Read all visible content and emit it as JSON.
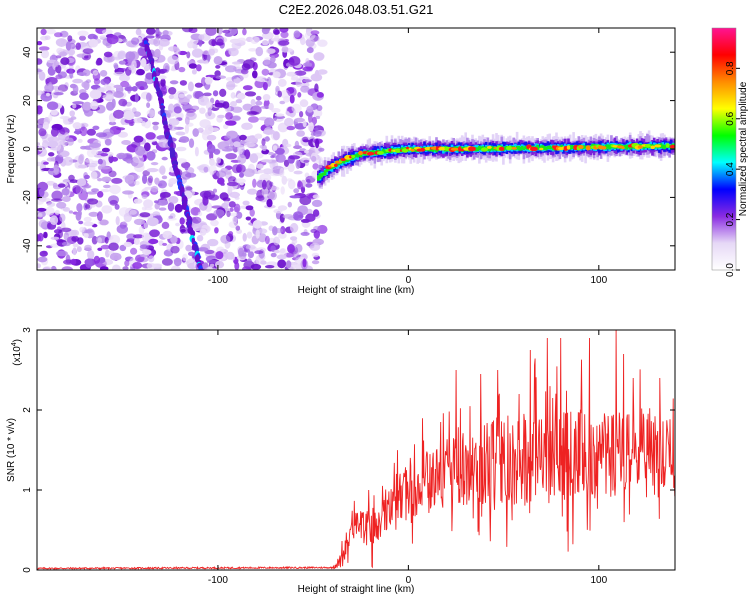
{
  "title": "C2E2.2026.048.03.51.G21",
  "chart_data": [
    {
      "type": "heatmap",
      "name": "spectrogram",
      "xlabel": "Height of straight line (km)",
      "ylabel": "Frequency (Hz)",
      "xlim": [
        -195,
        140
      ],
      "ylim": [
        -50,
        50
      ],
      "xticks": [
        -100,
        0,
        100
      ],
      "yticks": [
        -40,
        -20,
        0,
        20,
        40
      ],
      "noise_region_x": [
        -195,
        -48
      ],
      "oblique_trace": [
        {
          "x": -138,
          "y": 45
        },
        {
          "x": -130,
          "y": 20
        },
        {
          "x": -123,
          "y": -5
        },
        {
          "x": -115,
          "y": -30
        },
        {
          "x": -109,
          "y": -50
        }
      ],
      "main_trace": [
        {
          "x": -48,
          "y": -12
        },
        {
          "x": -42,
          "y": -8
        },
        {
          "x": -35,
          "y": -5
        },
        {
          "x": -25,
          "y": -2
        },
        {
          "x": -10,
          "y": -0.8
        },
        {
          "x": 0,
          "y": 0
        },
        {
          "x": 20,
          "y": 0
        },
        {
          "x": 50,
          "y": 0.3
        },
        {
          "x": 80,
          "y": 0.5
        },
        {
          "x": 110,
          "y": 1
        },
        {
          "x": 140,
          "y": 1.2
        }
      ],
      "colorbar": {
        "label": "Normalized spectral amplitude",
        "range": [
          0,
          0.96
        ],
        "ticks": [
          "0.0",
          "0.2",
          "0.4",
          "0.6",
          "0.8"
        ],
        "tick_values": [
          0,
          0.2,
          0.4,
          0.6,
          0.8
        ],
        "colors": [
          "#ffffff",
          "#e6d8f6",
          "#8a2be2",
          "#0000ff",
          "#00ffff",
          "#00ff00",
          "#ffff00",
          "#ff8c00",
          "#ff0000",
          "#ff1493"
        ]
      }
    },
    {
      "type": "line",
      "name": "snr",
      "xlabel": "Height of straight line (km)",
      "ylabel": "SNR (10 * v/v)",
      "y_multiplier_base": "(x10",
      "y_multiplier_exp": "4",
      "y_multiplier_close": ")",
      "xlim": [
        -195,
        140
      ],
      "ylim": [
        0,
        3
      ],
      "xticks": [
        -100,
        0,
        100
      ],
      "yticks": [
        0,
        1,
        2,
        3
      ],
      "color": "#ee2222",
      "envelope": [
        {
          "x": -195,
          "y": 0.02
        },
        {
          "x": -40,
          "y": 0.03
        },
        {
          "x": -35,
          "y": 0.12
        },
        {
          "x": -30,
          "y": 0.55
        },
        {
          "x": -20,
          "y": 0.5
        },
        {
          "x": -10,
          "y": 0.72
        },
        {
          "x": 0,
          "y": 1.0
        },
        {
          "x": 20,
          "y": 1.2
        },
        {
          "x": 40,
          "y": 1.35
        },
        {
          "x": 60,
          "y": 1.4
        },
        {
          "x": 80,
          "y": 1.42
        },
        {
          "x": 100,
          "y": 1.45
        },
        {
          "x": 120,
          "y": 1.45
        },
        {
          "x": 140,
          "y": 1.4
        }
      ],
      "noise_amplitude": [
        {
          "x": -195,
          "y": 0.01
        },
        {
          "x": -40,
          "y": 0.01
        },
        {
          "x": -30,
          "y": 0.2
        },
        {
          "x": 0,
          "y": 0.35
        },
        {
          "x": 30,
          "y": 0.5
        },
        {
          "x": 60,
          "y": 0.6
        },
        {
          "x": 100,
          "y": 0.6
        },
        {
          "x": 140,
          "y": 0.5
        }
      ],
      "peaks": [
        {
          "x": 17,
          "y": 1.85
        },
        {
          "x": 25,
          "y": 2.5
        },
        {
          "x": 38,
          "y": 2.45
        },
        {
          "x": 47,
          "y": 2.5
        },
        {
          "x": 58,
          "y": 2.2
        },
        {
          "x": 64,
          "y": 2.75
        },
        {
          "x": 73,
          "y": 2.9
        },
        {
          "x": 80,
          "y": 2.9
        },
        {
          "x": 95,
          "y": 2.9
        },
        {
          "x": 109,
          "y": 3.0
        },
        {
          "x": 113,
          "y": 2.7
        },
        {
          "x": 118,
          "y": 2.4
        },
        {
          "x": 132,
          "y": 2.4
        }
      ]
    }
  ]
}
